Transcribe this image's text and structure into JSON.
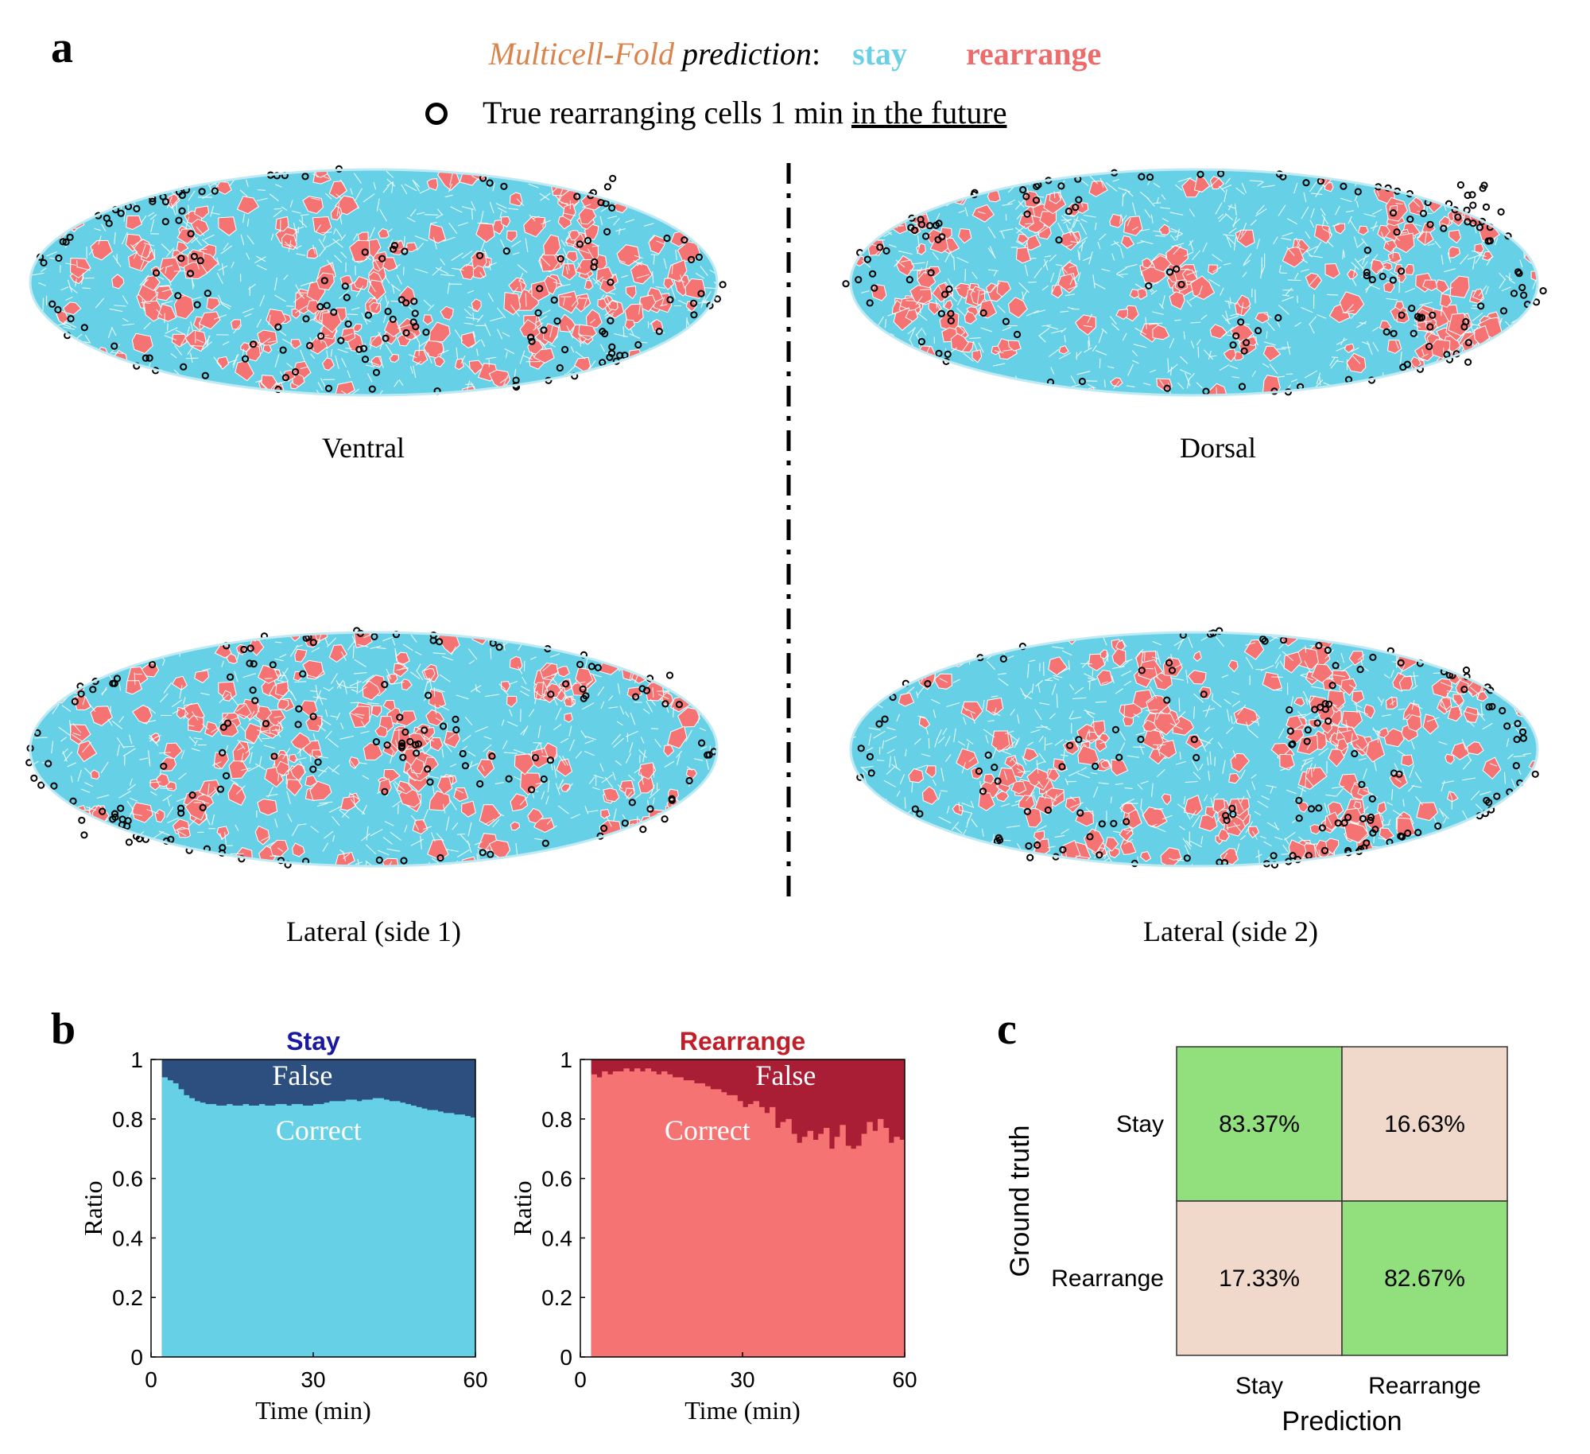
{
  "panels": {
    "a": "a",
    "b": "b",
    "c": "c"
  },
  "legend": {
    "model": "Multicell-Fold",
    "prediction": " prediction",
    "colon": ":",
    "stay": "stay",
    "rearrange": "rearrange",
    "circle_pre": "True rearranging cells 1 min ",
    "circle_underlined": "in the future"
  },
  "colors": {
    "stay": "#66d1e6",
    "rearrange": "#f57373",
    "stay_false": "#2c4f80",
    "rearrange_false": "#a91d35",
    "cm_diag": "#92df7e",
    "cm_off": "#f0d8cb",
    "legend_model": "#d9844d"
  },
  "views": [
    {
      "name": "ventral",
      "label": "Ventral",
      "seed": 3
    },
    {
      "name": "dorsal",
      "label": "Dorsal",
      "seed": 11
    },
    {
      "name": "lateral-side-1",
      "label": "Lateral (side 1)",
      "seed": 23
    },
    {
      "name": "lateral-side-2",
      "label": "Lateral (side 2)",
      "seed": 37
    }
  ],
  "chart_data": [
    {
      "type": "area",
      "title": "Stay",
      "xlabel": "Time (min)",
      "ylabel": "Ratio",
      "xlim": [
        0,
        60
      ],
      "ylim": [
        0,
        1
      ],
      "xticks": [
        0,
        30,
        60
      ],
      "yticks": [
        0,
        0.2,
        0.4,
        0.6,
        0.8,
        1
      ],
      "x_start": 2,
      "x_step": 1,
      "series": [
        {
          "name": "Correct",
          "values": [
            0.94,
            0.93,
            0.92,
            0.9,
            0.88,
            0.87,
            0.86,
            0.855,
            0.85,
            0.85,
            0.845,
            0.845,
            0.85,
            0.845,
            0.845,
            0.85,
            0.845,
            0.845,
            0.85,
            0.845,
            0.845,
            0.85,
            0.85,
            0.845,
            0.85,
            0.85,
            0.845,
            0.845,
            0.85,
            0.85,
            0.855,
            0.86,
            0.86,
            0.86,
            0.865,
            0.865,
            0.86,
            0.865,
            0.865,
            0.87,
            0.87,
            0.865,
            0.86,
            0.86,
            0.855,
            0.85,
            0.845,
            0.84,
            0.835,
            0.83,
            0.83,
            0.825,
            0.82,
            0.82,
            0.815,
            0.815,
            0.81,
            0.805
          ]
        },
        {
          "name": "False"
        }
      ]
    },
    {
      "type": "area",
      "title": "Rearrange",
      "xlabel": "Time (min)",
      "ylabel": "Ratio",
      "xlim": [
        0,
        60
      ],
      "ylim": [
        0,
        1
      ],
      "xticks": [
        0,
        30,
        60
      ],
      "yticks": [
        0,
        0.2,
        0.4,
        0.6,
        0.8,
        1
      ],
      "x_start": 2,
      "x_step": 1,
      "series": [
        {
          "name": "Correct",
          "values": [
            0.95,
            0.94,
            0.96,
            0.95,
            0.96,
            0.96,
            0.97,
            0.96,
            0.97,
            0.96,
            0.97,
            0.96,
            0.95,
            0.96,
            0.95,
            0.94,
            0.94,
            0.93,
            0.93,
            0.92,
            0.92,
            0.91,
            0.9,
            0.9,
            0.89,
            0.88,
            0.88,
            0.86,
            0.84,
            0.85,
            0.86,
            0.84,
            0.82,
            0.84,
            0.77,
            0.79,
            0.8,
            0.75,
            0.72,
            0.74,
            0.76,
            0.73,
            0.75,
            0.77,
            0.7,
            0.74,
            0.78,
            0.71,
            0.7,
            0.71,
            0.75,
            0.79,
            0.76,
            0.8,
            0.77,
            0.72,
            0.74,
            0.73
          ]
        },
        {
          "name": "False"
        }
      ]
    },
    {
      "type": "heatmap",
      "title": "",
      "xlabel": "Prediction",
      "ylabel": "Ground truth",
      "xcategories": [
        "Stay",
        "Rearrange"
      ],
      "ycategories": [
        "Stay",
        "Rearrange"
      ],
      "values": [
        [
          83.37,
          16.63
        ],
        [
          17.33,
          82.67
        ]
      ],
      "labels": [
        [
          "83.37%",
          "16.63%"
        ],
        [
          "17.33%",
          "82.67%"
        ]
      ]
    }
  ]
}
